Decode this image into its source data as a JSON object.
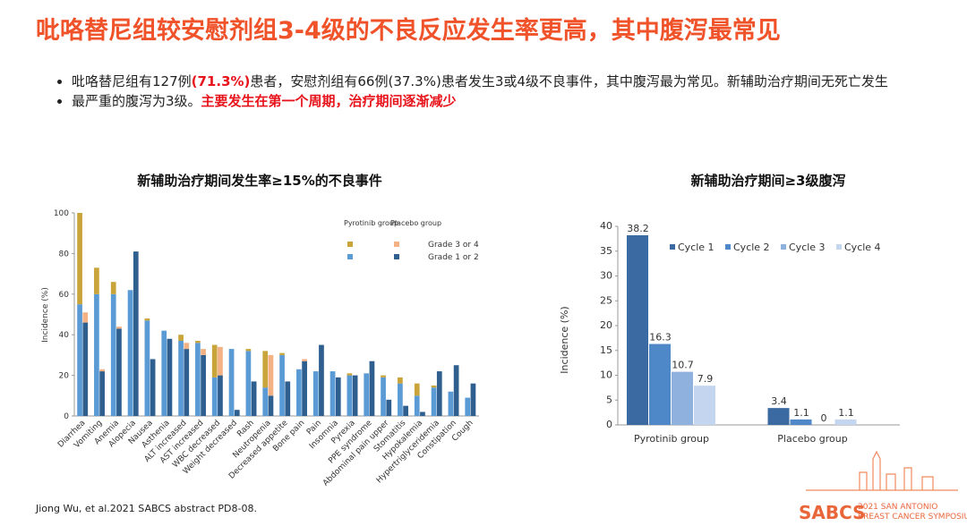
{
  "slide": {
    "title": "吡咯替尼组较安慰剂组3-4级的不良反应发生率更高，其中腹泻最常见",
    "bullets": [
      [
        "吡咯替尼组有127例",
        "(71.3%)",
        "患者，安慰剂组有66例(37.3%)患者发生3或4级不良事件，其中腹泻最为常见。新辅助治疗期间无死亡发生"
      ],
      [
        "最严重的腹泻为3级。",
        "主要发生在第一个周期，治疗期间逐渐减少"
      ]
    ],
    "citation": "Jiong Wu, et al.2021 SABCS abstract PD8-08.",
    "logo": {
      "mark": "SABCS",
      "line1": "2021 SAN ANTONIO",
      "line2": "BREAST CANCER SYMPOSIUM"
    }
  },
  "chart_data": [
    {
      "type": "stacked_grouped_bar",
      "title": "新辅助治疗期间发生率≥15%的不良事件",
      "y_label": "Incidence (%)",
      "categories": [
        "Diarrhea",
        "Vomiting",
        "Anemia",
        "Alopecia",
        "Nausea",
        "Asthenia",
        "ALT increased",
        "AST increased",
        "WBC decreased",
        "Weight decreased",
        "Rash",
        "Neutropenia",
        "Decreased appetite",
        "Bone pain",
        "Pain",
        "Insomnia",
        "Pyrexia",
        "PPE syndrome",
        "Abdominal pain upper",
        "Stomatitis",
        "Hypokalemia",
        "Hypertriglyceridemia",
        "Constipation",
        "Cough"
      ],
      "ylim": [
        0,
        100
      ],
      "yticks": [
        0,
        20,
        40,
        60,
        80,
        100
      ],
      "groups": [
        {
          "name": "Pyrotinib group",
          "segments": [
            {
              "name": "Grade 1 or 2",
              "color": "#5b9bd5",
              "values": [
                55,
                60,
                60,
                62,
                47,
                42,
                37,
                36,
                19,
                33,
                32,
                14,
                30,
                23,
                22,
                22,
                20,
                21,
                19,
                16,
                10,
                14,
                12,
                9
              ]
            },
            {
              "name": "Grade 3 or 4",
              "color": "#c8a43a",
              "values": [
                45,
                13,
                6,
                0,
                1,
                0,
                3,
                1,
                16,
                0,
                1,
                18,
                1,
                0,
                0,
                0,
                1,
                0,
                1,
                3,
                6,
                1,
                0,
                0
              ]
            }
          ]
        },
        {
          "name": "Placebo group",
          "segments": [
            {
              "name": "Grade 1 or 2",
              "color": "#2e5f8f",
              "values": [
                46,
                22,
                43,
                81,
                28,
                38,
                33,
                30,
                20,
                3,
                17,
                10,
                17,
                27,
                35,
                19,
                20,
                27,
                8,
                5,
                2,
                22,
                25,
                16
              ]
            },
            {
              "name": "Grade 3 or 4",
              "color": "#f4b183",
              "values": [
                5,
                1,
                1,
                0,
                0,
                0,
                3,
                3,
                14,
                0,
                0,
                20,
                0,
                1,
                0,
                0,
                0,
                0,
                0,
                0,
                0,
                0,
                0,
                0
              ]
            }
          ]
        }
      ]
    },
    {
      "type": "bar",
      "title": "新辅助治疗期间≥3级腹泻",
      "y_label": "Incidence (%)",
      "categories": [
        "Pyrotinib group",
        "Placebo group"
      ],
      "ylim": [
        0,
        40
      ],
      "yticks": [
        0,
        5,
        10,
        15,
        20,
        25,
        30,
        35,
        40
      ],
      "series": [
        {
          "name": "Cycle 1",
          "color": "#3b6aa3",
          "values": [
            38.2,
            3.4
          ]
        },
        {
          "name": "Cycle 2",
          "color": "#4f88c8",
          "values": [
            16.3,
            1.1
          ]
        },
        {
          "name": "Cycle 3",
          "color": "#8fb1de",
          "values": [
            10.7,
            0
          ]
        },
        {
          "name": "Cycle 4",
          "color": "#c3d5ef",
          "values": [
            7.9,
            1.1
          ]
        }
      ]
    }
  ]
}
